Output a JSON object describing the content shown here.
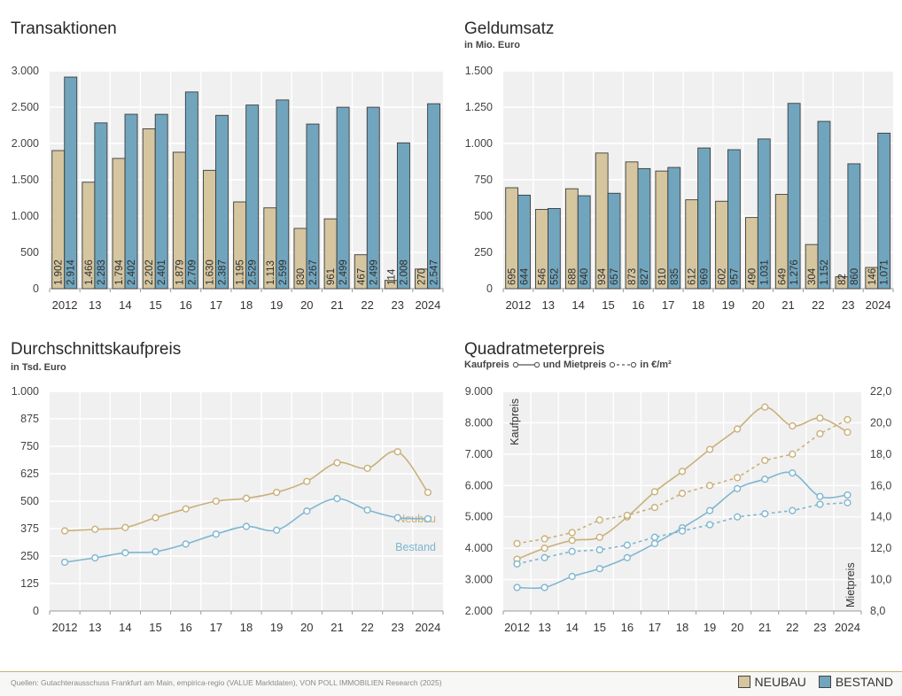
{
  "colors": {
    "neubau": "#d5c6a0",
    "bestand": "#71a5bd",
    "neubau_line": "#c9b07a",
    "bestand_line": "#7fb6d0",
    "plot_bg": "#f0f0f0",
    "grid": "#ffffff"
  },
  "source": "Quellen: Gutachterausschuss Frankfurt am Main, empirica-regio (VALUE Marktdaten), VON POLL IMMOBILIEN Research (2025)",
  "legend": {
    "neubau": "NEUBAU",
    "bestand": "BESTAND"
  },
  "qm_legend": {
    "kaufpreis": "Kaufpreis",
    "und_mietpreis": "und Mietpreis",
    "unit": "in €/m²"
  },
  "chart_data": [
    {
      "id": "transaktionen",
      "type": "bar",
      "title": "Transaktionen",
      "subtitle": "",
      "categories": [
        "2012",
        "13",
        "14",
        "15",
        "16",
        "17",
        "18",
        "19",
        "20",
        "21",
        "22",
        "23",
        "2024"
      ],
      "ylim": [
        0,
        3000
      ],
      "yticks": [
        0,
        500,
        1000,
        1500,
        2000,
        2500,
        3000
      ],
      "ytick_labels": [
        "0",
        "500",
        "1.000",
        "1.500",
        "2.000",
        "2.500",
        "3.000"
      ],
      "series": [
        {
          "name": "Neubau",
          "values": [
            1902,
            1466,
            1794,
            2202,
            1879,
            1630,
            1195,
            1113,
            830,
            961,
            467,
            114,
            270
          ],
          "labels": [
            "1.902",
            "1.466",
            "1.794",
            "2.202",
            "1.879",
            "1.630",
            "1.195",
            "1.113",
            "830",
            "961",
            "467",
            "114",
            "270"
          ]
        },
        {
          "name": "Bestand",
          "values": [
            2914,
            2283,
            2402,
            2401,
            2709,
            2387,
            2529,
            2599,
            2267,
            2499,
            2499,
            2008,
            2547
          ],
          "labels": [
            "2.914",
            "2.283",
            "2.402",
            "2.401",
            "2.709",
            "2.387",
            "2.529",
            "2.599",
            "2.267",
            "2.499",
            "2.499",
            "2.008",
            "2.547"
          ]
        }
      ]
    },
    {
      "id": "geldumsatz",
      "type": "bar",
      "title": "Geldumsatz",
      "subtitle": "in Mio. Euro",
      "categories": [
        "2012",
        "13",
        "14",
        "15",
        "16",
        "17",
        "18",
        "19",
        "20",
        "21",
        "22",
        "23",
        "2024"
      ],
      "ylim": [
        0,
        1500
      ],
      "yticks": [
        0,
        250,
        500,
        750,
        1000,
        1250,
        1500
      ],
      "ytick_labels": [
        "0",
        "250",
        "500",
        "750",
        "1.000",
        "1.250",
        "1.500"
      ],
      "series": [
        {
          "name": "Neubau",
          "values": [
            695,
            546,
            688,
            934,
            873,
            810,
            612,
            602,
            490,
            649,
            304,
            82,
            146
          ],
          "labels": [
            "695",
            "546",
            "688",
            "934",
            "873",
            "810",
            "612",
            "602",
            "490",
            "649",
            "304",
            "82",
            "146"
          ]
        },
        {
          "name": "Bestand",
          "values": [
            644,
            552,
            640,
            657,
            827,
            835,
            969,
            957,
            1031,
            1276,
            1152,
            860,
            1071
          ],
          "labels": [
            "644",
            "552",
            "640",
            "657",
            "827",
            "835",
            "969",
            "957",
            "1.031",
            "1.276",
            "1.152",
            "860",
            "1.071"
          ]
        }
      ]
    },
    {
      "id": "kaufpreis",
      "type": "line",
      "title": "Durchschnittskaufpreis",
      "subtitle": "in Tsd. Euro",
      "categories": [
        "2012",
        "13",
        "14",
        "15",
        "16",
        "17",
        "18",
        "19",
        "20",
        "21",
        "22",
        "23",
        "2024"
      ],
      "ylim": [
        0,
        1000
      ],
      "yticks": [
        0,
        125,
        250,
        375,
        500,
        625,
        750,
        875,
        1000
      ],
      "ytick_labels": [
        "0",
        "125",
        "250",
        "375",
        "500",
        "625",
        "750",
        "875",
        "1.000"
      ],
      "series": [
        {
          "name": "Neubau",
          "label": "Neubau",
          "values": [
            365,
            372,
            380,
            425,
            465,
            500,
            513,
            540,
            590,
            675,
            650,
            725,
            540
          ]
        },
        {
          "name": "Bestand",
          "label": "Bestand",
          "values": [
            222,
            242,
            265,
            270,
            305,
            350,
            385,
            368,
            455,
            512,
            460,
            425,
            420
          ]
        }
      ]
    },
    {
      "id": "quadratmeterpreis",
      "type": "line",
      "title": "Quadratmeterpreis",
      "subtitle": "Kaufpreis und Mietpreis in €/m²",
      "categories": [
        "2012",
        "13",
        "14",
        "15",
        "16",
        "17",
        "18",
        "19",
        "20",
        "21",
        "22",
        "23",
        "2024"
      ],
      "ylim": [
        2000,
        9000
      ],
      "yticks": [
        2000,
        3000,
        4000,
        5000,
        6000,
        7000,
        8000,
        9000
      ],
      "ytick_labels": [
        "2.000",
        "3.000",
        "4.000",
        "5.000",
        "6.000",
        "7.000",
        "8.000",
        "9.000"
      ],
      "ylabel": "Kaufpreis",
      "y2lim": [
        8,
        22
      ],
      "y2ticks": [
        8,
        10,
        12,
        14,
        16,
        18,
        20,
        22
      ],
      "y2tick_labels": [
        "8,0",
        "10,0",
        "12,0",
        "14,0",
        "16,0",
        "18,0",
        "20,0",
        "22,0"
      ],
      "y2label": "Mietpreis",
      "series": [
        {
          "name": "Kaufpreis Neubau",
          "axis": "left",
          "style": "solid",
          "color": "neubau",
          "values": [
            3650,
            4000,
            4250,
            4350,
            5000,
            5800,
            6450,
            7150,
            7800,
            8500,
            7900,
            8150,
            7700
          ]
        },
        {
          "name": "Kaufpreis Bestand",
          "axis": "left",
          "style": "solid",
          "color": "bestand",
          "values": [
            2750,
            2750,
            3100,
            3350,
            3700,
            4150,
            4650,
            5200,
            5900,
            6200,
            6400,
            5650,
            5700
          ]
        },
        {
          "name": "Mietpreis Neubau",
          "axis": "right",
          "style": "dashed",
          "color": "neubau",
          "values": [
            12.3,
            12.6,
            13.0,
            13.8,
            14.1,
            14.6,
            15.5,
            16.0,
            16.5,
            17.6,
            18.0,
            19.3,
            20.2
          ]
        },
        {
          "name": "Mietpreis Bestand",
          "axis": "right",
          "style": "dashed",
          "color": "bestand",
          "values": [
            11.0,
            11.4,
            11.8,
            11.9,
            12.2,
            12.7,
            13.1,
            13.5,
            14.0,
            14.2,
            14.4,
            14.8,
            14.9
          ]
        }
      ]
    }
  ]
}
